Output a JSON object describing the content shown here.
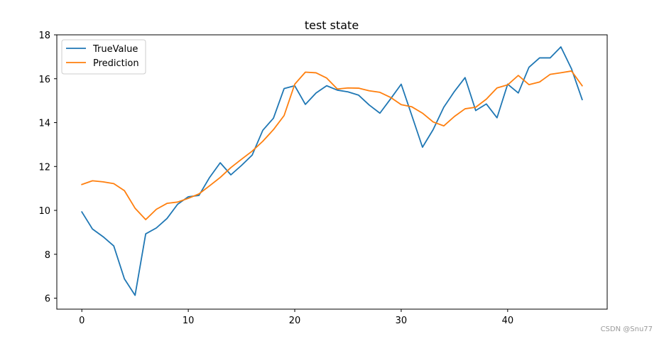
{
  "chart_data": {
    "type": "line",
    "title": "test state",
    "xlabel": "",
    "ylabel": "",
    "xlim": [
      -2.35,
      49.35
    ],
    "ylim": [
      5.5,
      18
    ],
    "xticks": [
      0,
      10,
      20,
      30,
      40
    ],
    "yticks": [
      6,
      8,
      10,
      12,
      14,
      16,
      18
    ],
    "grid": false,
    "legend_position": "top-left",
    "x": [
      0,
      1,
      2,
      3,
      4,
      5,
      6,
      7,
      8,
      9,
      10,
      11,
      12,
      13,
      14,
      15,
      16,
      17,
      18,
      19,
      20,
      21,
      22,
      23,
      24,
      25,
      26,
      27,
      28,
      29,
      30,
      31,
      32,
      33,
      34,
      35,
      36,
      37,
      38,
      39,
      40,
      41,
      42,
      43,
      44,
      45,
      46,
      47
    ],
    "series": [
      {
        "name": "TrueValue",
        "color": "#1f77b4",
        "values": [
          9.93,
          9.15,
          8.8,
          8.38,
          6.88,
          6.13,
          8.93,
          9.2,
          9.63,
          10.28,
          10.62,
          10.68,
          11.5,
          12.17,
          11.62,
          12.05,
          12.52,
          13.65,
          14.2,
          15.55,
          15.68,
          14.83,
          15.35,
          15.68,
          15.48,
          15.4,
          15.25,
          14.8,
          14.43,
          15.08,
          15.75,
          14.32,
          12.88,
          13.68,
          14.7,
          15.42,
          16.05,
          14.55,
          14.85,
          14.22,
          15.75,
          15.35,
          16.52,
          16.95,
          16.95,
          17.45,
          16.45,
          15.05
        ]
      },
      {
        "name": "Prediction",
        "color": "#ff7f0e",
        "values": [
          11.18,
          11.35,
          11.3,
          11.22,
          10.9,
          10.1,
          9.58,
          10.05,
          10.32,
          10.38,
          10.55,
          10.75,
          11.12,
          11.5,
          11.95,
          12.33,
          12.7,
          13.15,
          13.68,
          14.32,
          15.75,
          16.3,
          16.27,
          16.03,
          15.53,
          15.58,
          15.57,
          15.45,
          15.38,
          15.15,
          14.82,
          14.72,
          14.43,
          14.03,
          13.85,
          14.28,
          14.63,
          14.7,
          15.07,
          15.58,
          15.72,
          16.15,
          15.73,
          15.85,
          16.2,
          16.27,
          16.35,
          15.68
        ]
      }
    ]
  },
  "watermark": "CSDN @Snu77"
}
